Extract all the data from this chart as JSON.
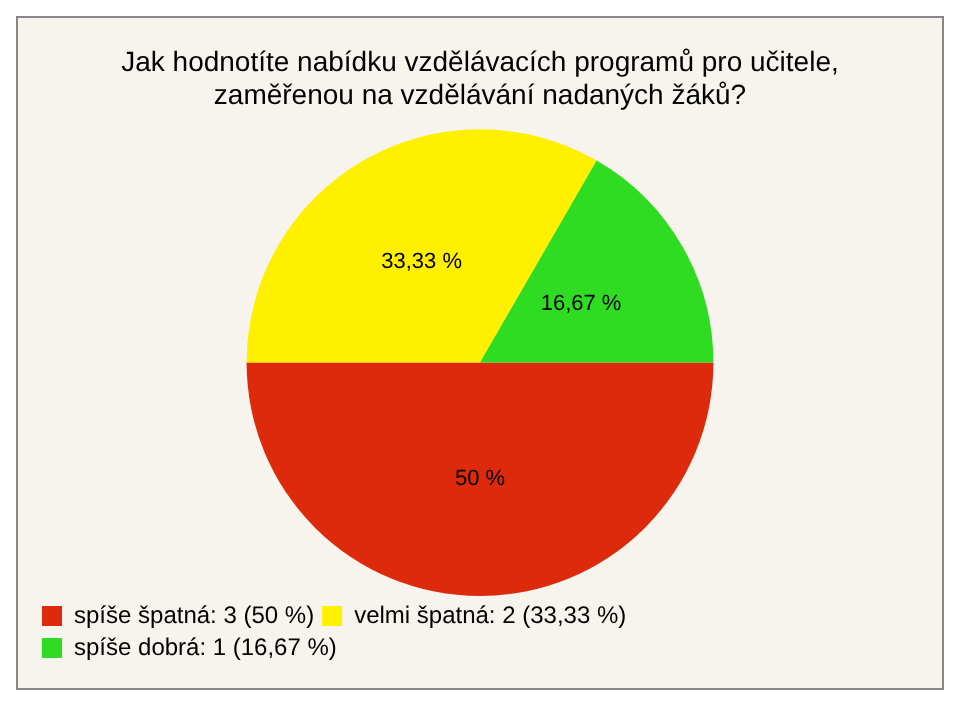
{
  "chart_data": {
    "type": "pie",
    "title": "Jak hodnotíte nabídku vzdělávacích programů pro učitele, zaměřenou na vzdělávání nadaných žáků?",
    "categories": [
      "spíše špatná: 3 (50 %)",
      "velmi špatná: 2 (33,33 %)",
      "spíše dobrá: 1 (16,67 %)"
    ],
    "values": [
      50,
      33.33,
      16.67
    ],
    "value_labels": [
      "50 %",
      "33,33 %",
      "16,67 %"
    ],
    "colors": [
      "#dd2a0c",
      "#fff000",
      "#2edc22"
    ],
    "legend": "bottom left"
  }
}
